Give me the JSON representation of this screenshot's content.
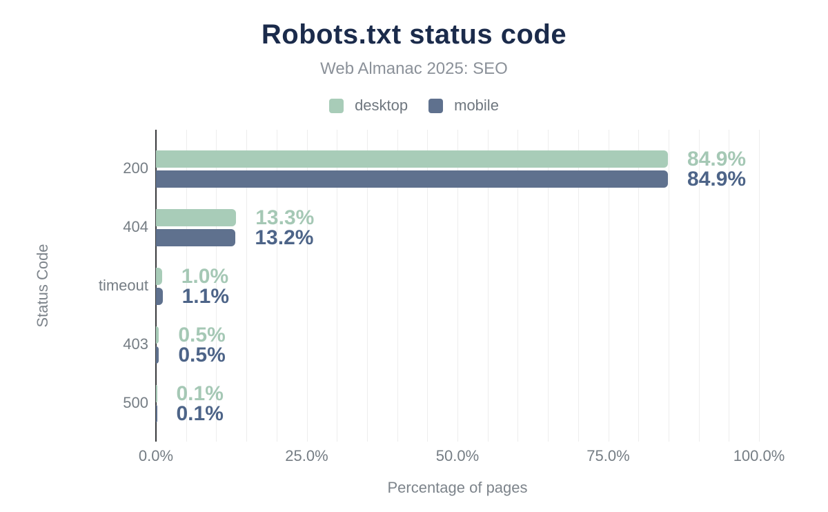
{
  "header": {
    "title": "Robots.txt status code",
    "subtitle": "Web Almanac 2025: SEO"
  },
  "legend": {
    "items": [
      {
        "label": "desktop",
        "color": "#a8ccb8"
      },
      {
        "label": "mobile",
        "color": "#5f718e"
      }
    ]
  },
  "chart_data": {
    "type": "bar",
    "orientation": "horizontal",
    "title": "Robots.txt status code",
    "subtitle": "Web Almanac 2025: SEO",
    "xlabel": "Percentage of pages",
    "ylabel": "Status Code",
    "xlim": [
      0,
      100
    ],
    "grid": "vertical minor gridlines every 5%",
    "legend_position": "top",
    "categories": [
      "200",
      "404",
      "timeout",
      "403",
      "500"
    ],
    "series": [
      {
        "name": "desktop",
        "color": "#a8ccb8",
        "label_color": "#a5c8b5",
        "values": [
          84.9,
          13.3,
          1.0,
          0.5,
          0.1
        ],
        "value_labels": [
          "84.9%",
          "13.3%",
          "1.0%",
          "0.5%",
          "0.1%"
        ]
      },
      {
        "name": "mobile",
        "color": "#5f718e",
        "label_color": "#4d6488",
        "values": [
          84.9,
          13.2,
          1.1,
          0.5,
          0.1
        ],
        "value_labels": [
          "84.9%",
          "13.2%",
          "1.1%",
          "0.5%",
          "0.1%"
        ]
      }
    ],
    "x_ticks": {
      "values": [
        0,
        25,
        50,
        75,
        100
      ],
      "labels": [
        "0.0%",
        "25.0%",
        "50.0%",
        "75.0%",
        "100.0%"
      ]
    }
  },
  "colors": {
    "title": "#1b2b4b",
    "subtitle": "#8b9199",
    "axis_labels": "#757d84",
    "axis_line": "#37383a",
    "gridline": "#ededed",
    "background": "#ffffff"
  }
}
